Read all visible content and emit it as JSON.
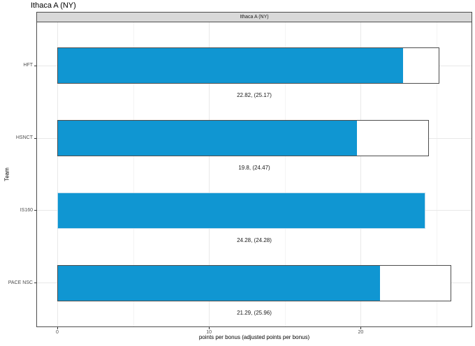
{
  "title": "Ithaca A (NY)",
  "facet_label": "Ithaca A (NY)",
  "chart_data": {
    "type": "bar",
    "orientation": "horizontal",
    "title": "Ithaca A (NY)",
    "facet": "Ithaca A (NY)",
    "xlabel": "points per bonus (adjusted points per bonus)",
    "ylabel": "Team",
    "categories": [
      "HFT",
      "HSNCT",
      "IS160",
      "PACE NSC"
    ],
    "series": [
      {
        "name": "points per bonus",
        "values": [
          22.82,
          19.8,
          24.28,
          21.29
        ]
      },
      {
        "name": "adjusted points per bonus",
        "values": [
          25.17,
          24.47,
          24.28,
          25.96
        ]
      }
    ],
    "bar_labels": [
      "22.82, (25.17)",
      "19.8, (24.47)",
      "24.28, (24.28)",
      "21.29, (25.96)"
    ],
    "x_ticks": [
      0,
      10,
      20
    ],
    "x_minor_ticks": [
      5,
      15,
      25
    ],
    "xlim": [
      -1.33,
      27.3
    ],
    "grid": true,
    "legend": "none",
    "colors": {
      "bar_fill": "#1096D2",
      "bar_border_dark": "#4d4d4d",
      "bar_border_light": "#bedcec",
      "strip_bg": "#d9d9d9",
      "grid_major": "#e8e8e8",
      "grid_minor": "#f4f4f4",
      "axis_text": "#4d4d4d"
    }
  }
}
